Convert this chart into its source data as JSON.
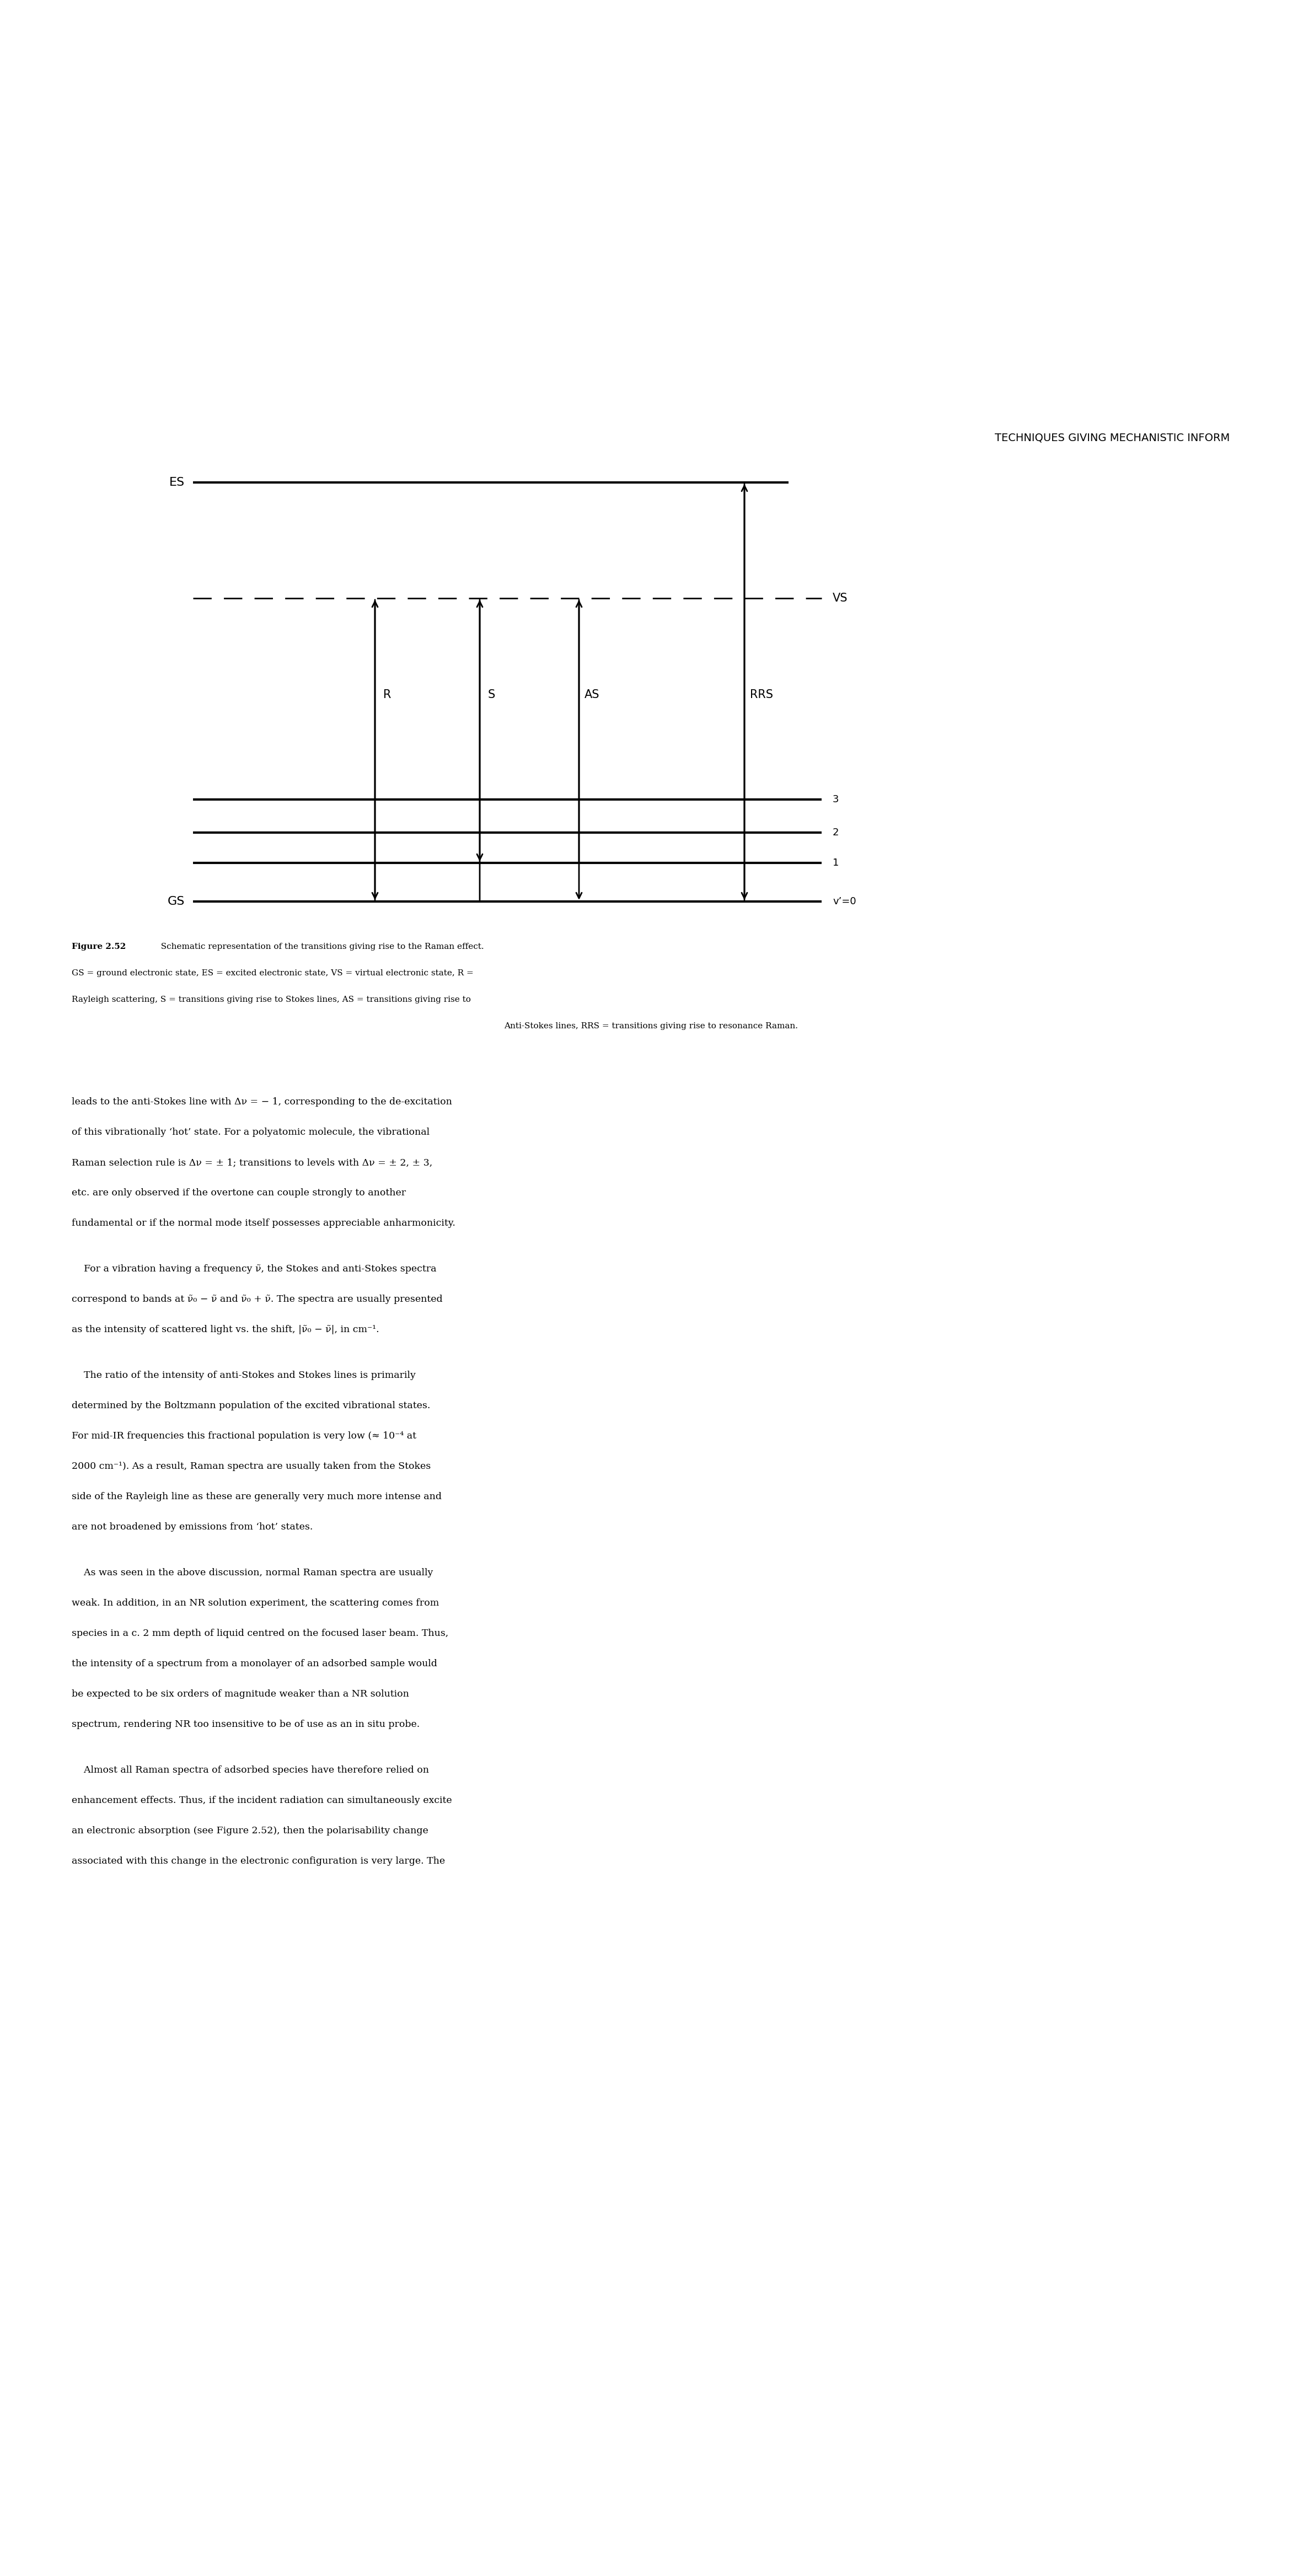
{
  "header_text": "TECHNIQUES GIVING MECHANISTIC INFORM",
  "header_fontsize": 14,
  "caption_line1": "Figure 2.52",
  "caption_rest": "  Schematic representation of the transitions giving rise to the Raman effect.",
  "caption_line2": "GS = ground electronic state, ES = excited electronic state, VS = virtual electronic state, R =",
  "caption_line3": "Rayleigh scattering, S = transitions giving rise to Stokes lines, AS = transitions giving rise to",
  "caption_line4": "Anti-Stokes lines, RRS = transitions giving rise to resonance Raman.",
  "body_text_lines": [
    "leads to the anti-Stokes line with Δν = − 1, corresponding to the de-excitation",
    "of this vibrationally ‘hot’ state. For a polyatomic molecule, the vibrational",
    "Raman selection rule is Δν = ± 1; transitions to levels with Δν = ± 2, ± 3,",
    "etc. are only observed if the overtone can couple strongly to another",
    "fundamental or if the normal mode itself possesses appreciable anharmonicity.",
    "    For a vibration having a frequency ν̃, the Stokes and anti-Stokes spectra",
    "correspond to bands at ν̃₀ − ν̃ and ν̃₀ + ν̃. The spectra are usually presented",
    "as the intensity of scattered light vs. the shift, |ν̃₀ − ν̃|, in cm⁻¹.",
    "    The ratio of the intensity of anti-Stokes and Stokes lines is primarily",
    "determined by the Boltzmann population of the excited vibrational states.",
    "For mid-IR frequencies this fractional population is very low (≈ 10⁻⁴ at",
    "2000 cm⁻¹). As a result, Raman spectra are usually taken from the Stokes",
    "side of the Rayleigh line as these are generally very much more intense and",
    "are not broadened by emissions from ‘hot’ states.",
    "    As was seen in the above discussion, normal Raman spectra are usually",
    "weak. In addition, in an NR solution experiment, the scattering comes from",
    "species in a c. 2 mm depth of liquid centred on the focused laser beam. Thus,",
    "the intensity of a spectrum from a monolayer of an adsorbed sample would",
    "be expected to be six orders of magnitude weaker than a NR solution",
    "spectrum, rendering NR too insensitive to be of use as an in situ probe.",
    "    Almost all Raman spectra of adsorbed species have therefore relied on",
    "enhancement effects. Thus, if the incident radiation can simultaneously excite",
    "an electronic absorption (see Figure 2.52), then the polarisability change",
    "associated with this change in the electronic configuration is very large. The"
  ],
  "background_color": "#ffffff",
  "text_color": "#000000"
}
